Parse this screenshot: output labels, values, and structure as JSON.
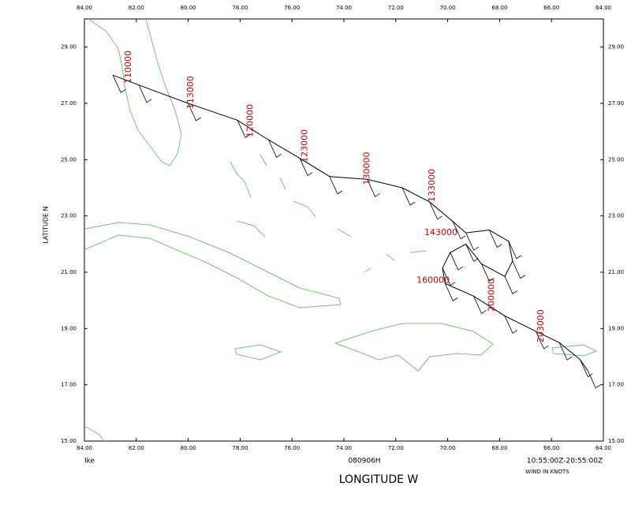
{
  "chart_data": {
    "type": "track-map",
    "title": "Ike",
    "subtitle": "080906H",
    "time_range": "10:55:00Z-20:55:00Z",
    "note": "WIND IN KNOTS",
    "xlabel": "LONGITUDE  W",
    "ylabel": "LATITUDE  N",
    "xlim": [
      84,
      64
    ],
    "ylim": [
      15,
      30
    ],
    "xticks": [
      {
        "value": 84,
        "label": "84.00"
      },
      {
        "value": 82,
        "label": "82.00"
      },
      {
        "value": 80,
        "label": "80.00"
      },
      {
        "value": 78,
        "label": "78.00"
      },
      {
        "value": 76,
        "label": "76.00"
      },
      {
        "value": 74,
        "label": "74.00"
      },
      {
        "value": 72,
        "label": "72.00"
      },
      {
        "value": 70,
        "label": "70.00"
      },
      {
        "value": 68,
        "label": "68.00"
      },
      {
        "value": 66,
        "label": "66.00"
      },
      {
        "value": 64,
        "label": "64.00"
      }
    ],
    "yticks": [
      {
        "value": 15,
        "label": "15.00"
      },
      {
        "value": 17,
        "label": "17.00"
      },
      {
        "value": 19,
        "label": "19.00"
      },
      {
        "value": 21,
        "label": "21.00"
      },
      {
        "value": 23,
        "label": "23.00"
      },
      {
        "value": 25,
        "label": "25.00"
      },
      {
        "value": 27,
        "label": "27.00"
      },
      {
        "value": 29,
        "label": "29.00"
      }
    ],
    "track_color": "#000000",
    "label_color": "#cc0000",
    "track": {
      "lon": [
        82.9,
        81.9,
        80.0,
        78.1,
        76.9,
        75.7,
        74.55,
        73.1,
        71.75,
        70.7,
        69.8,
        69.3,
        68.4,
        67.65,
        67.5,
        67.8,
        68.7,
        69.3,
        69.9,
        70.2,
        70.1,
        69.0,
        67.8,
        66.6,
        65.7,
        64.9,
        64.6
      ],
      "lat": [
        28.0,
        27.65,
        27.0,
        26.4,
        25.7,
        25.05,
        24.4,
        24.3,
        24.0,
        23.5,
        22.8,
        22.4,
        22.5,
        22.1,
        21.4,
        20.85,
        21.3,
        22.0,
        21.7,
        21.15,
        20.6,
        20.15,
        19.45,
        18.9,
        18.5,
        17.9,
        17.5
      ]
    },
    "time_labels": [
      {
        "text": "110000",
        "lon": 82.3,
        "lat": 27.7,
        "orientation": "vertical"
      },
      {
        "text": "113000",
        "lon": 79.9,
        "lat": 26.8,
        "orientation": "vertical"
      },
      {
        "text": "120000",
        "lon": 77.6,
        "lat": 25.8,
        "orientation": "vertical"
      },
      {
        "text": "123000",
        "lon": 75.5,
        "lat": 24.9,
        "orientation": "vertical"
      },
      {
        "text": "130000",
        "lon": 73.1,
        "lat": 24.1,
        "orientation": "vertical"
      },
      {
        "text": "133000",
        "lon": 70.6,
        "lat": 23.5,
        "orientation": "vertical"
      },
      {
        "text": "143000",
        "lon": 70.9,
        "lat": 22.4,
        "orientation": "horizontal"
      },
      {
        "text": "160000",
        "lon": 71.2,
        "lat": 20.7,
        "orientation": "horizontal"
      },
      {
        "text": "200000",
        "lon": 68.3,
        "lat": 19.6,
        "orientation": "vertical"
      },
      {
        "text": "203000",
        "lon": 66.4,
        "lat": 18.5,
        "orientation": "vertical"
      }
    ]
  }
}
